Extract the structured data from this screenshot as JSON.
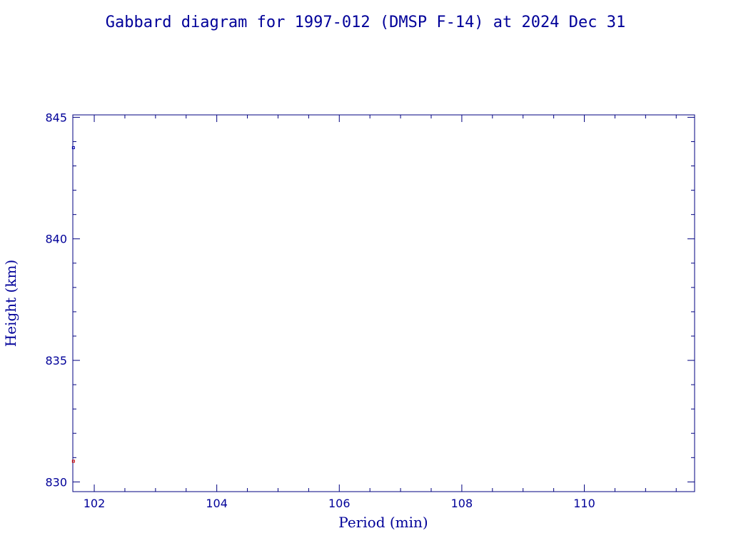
{
  "chart_data": {
    "type": "scatter",
    "title": "Gabbard diagram for 1997-012 (DMSP F-14) at 2024 Dec 31",
    "xlabel": "Period (min)",
    "ylabel": "Height (km)",
    "xlim": [
      101.65,
      111.8
    ],
    "ylim": [
      829.6,
      845.1
    ],
    "x_ticks": [
      102,
      104,
      106,
      108,
      110
    ],
    "x_tick_labels": [
      "102",
      "104",
      "106",
      "108",
      "110"
    ],
    "x_minor_step": 0.5,
    "y_ticks": [
      830,
      835,
      840,
      845
    ],
    "y_tick_labels": [
      "830",
      "835",
      "840",
      "845"
    ],
    "y_minor_step": 1,
    "grid": false,
    "series": [
      {
        "role": "apogee",
        "color": "#0000aa",
        "points": [
          {
            "x": 101.66,
            "y": 843.75
          }
        ]
      },
      {
        "role": "perigee",
        "color": "#cc0000",
        "points": [
          {
            "x": 101.66,
            "y": 830.85
          }
        ]
      }
    ],
    "colors": {
      "axis": "#000080",
      "text": "#000099"
    }
  }
}
